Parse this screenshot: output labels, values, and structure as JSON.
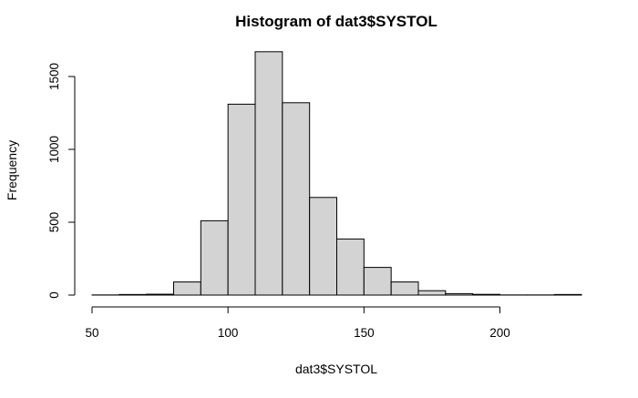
{
  "chart_data": {
    "type": "bar",
    "title": "Histogram of dat3$SYSTOL",
    "xlabel": "dat3$SYSTOL",
    "ylabel": "Frequency",
    "bins": [
      {
        "from": 50,
        "to": 60,
        "count": 1
      },
      {
        "from": 60,
        "to": 70,
        "count": 4
      },
      {
        "from": 70,
        "to": 80,
        "count": 6
      },
      {
        "from": 80,
        "to": 90,
        "count": 90
      },
      {
        "from": 90,
        "to": 100,
        "count": 510
      },
      {
        "from": 100,
        "to": 110,
        "count": 1310
      },
      {
        "from": 110,
        "to": 120,
        "count": 1670
      },
      {
        "from": 120,
        "to": 130,
        "count": 1320
      },
      {
        "from": 130,
        "to": 140,
        "count": 670
      },
      {
        "from": 140,
        "to": 150,
        "count": 385
      },
      {
        "from": 150,
        "to": 160,
        "count": 190
      },
      {
        "from": 160,
        "to": 170,
        "count": 90
      },
      {
        "from": 170,
        "to": 180,
        "count": 30
      },
      {
        "from": 180,
        "to": 190,
        "count": 10
      },
      {
        "from": 190,
        "to": 200,
        "count": 5
      },
      {
        "from": 200,
        "to": 210,
        "count": 1
      },
      {
        "from": 210,
        "to": 220,
        "count": 1
      },
      {
        "from": 220,
        "to": 230,
        "count": 4
      }
    ],
    "xlim": [
      50,
      230
    ],
    "ylim": [
      0,
      1700
    ],
    "xticks": [
      50,
      100,
      150,
      200
    ],
    "yticks": [
      0,
      500,
      1000,
      1500
    ],
    "xtick_labels": [
      "50",
      "100",
      "150",
      "200"
    ],
    "ytick_labels": [
      "0",
      "500",
      "1000",
      "1500"
    ],
    "bar_fill": "#d3d3d3",
    "bar_edge": "#000000",
    "grid": false,
    "legend": false
  }
}
